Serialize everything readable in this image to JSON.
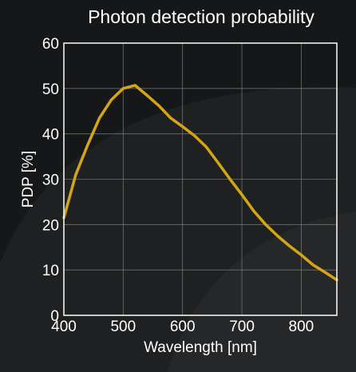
{
  "chart_data": {
    "type": "line",
    "title": "Photon detection probability",
    "xlabel": "Wavelength [nm]",
    "ylabel": "PDP [%]",
    "xlim": [
      400,
      860
    ],
    "ylim": [
      0,
      60
    ],
    "x_ticks": [
      400,
      500,
      600,
      700,
      800
    ],
    "y_ticks": [
      0,
      10,
      20,
      30,
      40,
      50,
      60
    ],
    "grid": true,
    "series": [
      {
        "color": "#d4a514",
        "x": [
          400,
          420,
          440,
          460,
          480,
          500,
          520,
          540,
          560,
          580,
          600,
          620,
          640,
          660,
          680,
          700,
          720,
          740,
          760,
          780,
          800,
          820,
          840,
          860
        ],
        "y": [
          21.5,
          31,
          37.5,
          43.5,
          47.5,
          50,
          50.7,
          48.5,
          46.2,
          43.5,
          41.6,
          39.6,
          37.1,
          33.6,
          30,
          26.6,
          23,
          20,
          17.5,
          15.3,
          13.3,
          11.1,
          9.5,
          7.8
        ]
      }
    ]
  }
}
